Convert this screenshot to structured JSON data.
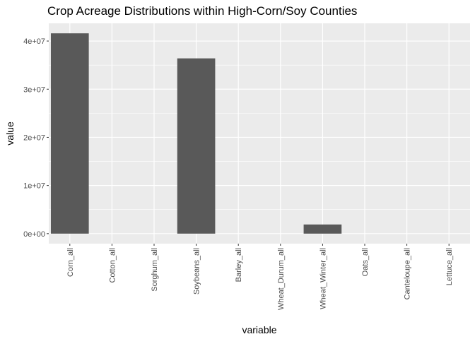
{
  "chart_data": {
    "type": "bar",
    "title": "Crop Acreage Distributions within High-Corn/Soy Counties",
    "xlabel": "variable",
    "ylabel": "value",
    "categories": [
      "Corn_all",
      "Cotton_all",
      "Sorghum_all",
      "Soybeans_all",
      "Barley_all",
      "Wheat_Durum_all",
      "Wheat_Winter_all",
      "Oats_all",
      "Canteloupe_all",
      "Lettuce_all"
    ],
    "values": [
      41600000,
      0,
      0,
      36400000,
      0,
      0,
      1900000,
      0,
      0,
      0
    ],
    "y_ticks": [
      0,
      10000000,
      20000000,
      30000000,
      40000000
    ],
    "y_tick_labels": [
      "0e+00",
      "1e+07",
      "2e+07",
      "3e+07",
      "4e+07"
    ],
    "ylim": [
      -2080000,
      43680000
    ],
    "grid": true,
    "colors": {
      "panel": "#ebebeb",
      "grid": "#ffffff",
      "bar": "#595959"
    }
  }
}
